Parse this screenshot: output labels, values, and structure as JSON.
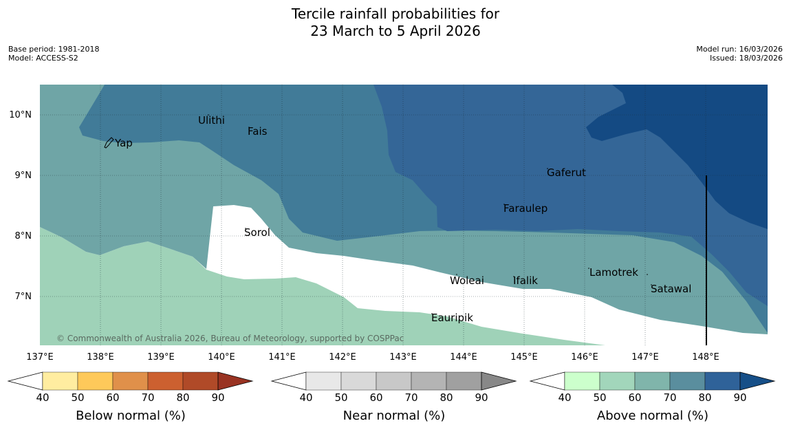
{
  "title": {
    "line1": "Tercile rainfall probabilities for",
    "line2": "23 March to 5 April 2026"
  },
  "meta_left": {
    "base_period": "Base period: 1981-2018",
    "model": "Model: ACCESS-S2"
  },
  "meta_right": {
    "model_run": "Model run: 16/03/2026",
    "issued": "Issued: 18/03/2026"
  },
  "lat_labels": [
    "10°N",
    "9°N",
    "8°N",
    "7°N"
  ],
  "lon_labels": [
    "137°E",
    "138°E",
    "139°E",
    "140°E",
    "141°E",
    "142°E",
    "143°E",
    "144°E",
    "145°E",
    "146°E",
    "147°E",
    "148°E"
  ],
  "places": {
    "yap": "Yap",
    "ulithi": "Ulithi",
    "fais": "Fais",
    "gaferut": "Gaferut",
    "faraulep": "Faraulep",
    "sorol": "Sorol",
    "lamotrek": "Lamotrek",
    "woleai": "Woleai",
    "ifalik": "Ifalik",
    "satawal": "Satawal",
    "eauripik": "Eauripik"
  },
  "copyright": "© Commonwealth of Australia 2026, Bureau of Meteorology, supported by COSPPac",
  "colorbars": [
    {
      "label": "Below normal (%)",
      "ticks": [
        "40",
        "50",
        "60",
        "70",
        "80",
        "90"
      ],
      "colors": [
        "#ffeda0",
        "#fec95a",
        "#e0904a",
        "#cc6030",
        "#b04a28",
        "#993322"
      ]
    },
    {
      "label": "Near normal (%)",
      "ticks": [
        "40",
        "50",
        "60",
        "70",
        "80",
        "90"
      ],
      "colors": [
        "#e8e8e8",
        "#d9d9d9",
        "#c8c8c8",
        "#b4b4b4",
        "#a0a0a0",
        "#888888"
      ]
    },
    {
      "label": "Above normal (%)",
      "ticks": [
        "40",
        "50",
        "60",
        "70",
        "80",
        "90"
      ],
      "colors": [
        "#ccffcc",
        "#a2d6bb",
        "#80b5ab",
        "#5a8e9e",
        "#2f6299",
        "#164f88"
      ]
    }
  ],
  "map_colors": {
    "ocean_white": "#ffffff",
    "level_40": "#ccffcc",
    "level_50": "#9fd2b8",
    "level_60": "#6fa5a6",
    "level_70": "#417b98",
    "level_80": "#346697",
    "level_90": "#144a83"
  }
}
